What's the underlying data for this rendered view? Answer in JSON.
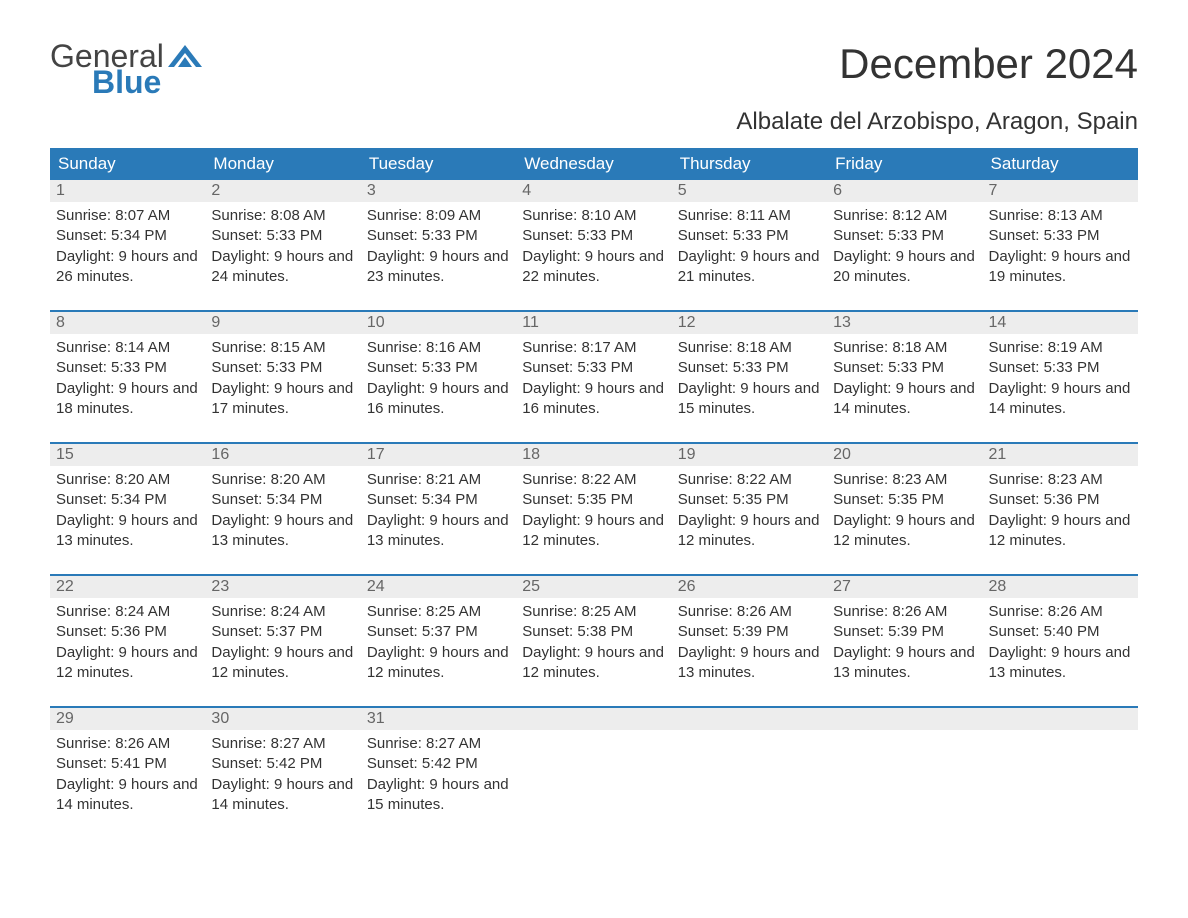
{
  "logo": {
    "general": "General",
    "blue": "Blue",
    "tri_color": "#2a7ab8"
  },
  "title": "December 2024",
  "location": "Albalate del Arzobispo, Aragon, Spain",
  "colors": {
    "header_bg": "#2a7ab8",
    "header_text": "#ffffff",
    "daynum_bg": "#ededed",
    "daynum_text": "#666666",
    "body_text": "#333333",
    "week_border": "#2a7ab8",
    "background": "#ffffff"
  },
  "weekdays": [
    "Sunday",
    "Monday",
    "Tuesday",
    "Wednesday",
    "Thursday",
    "Friday",
    "Saturday"
  ],
  "weeks": [
    [
      {
        "day": "1",
        "sunrise": "8:07 AM",
        "sunset": "5:34 PM",
        "daylight": "9 hours and 26 minutes."
      },
      {
        "day": "2",
        "sunrise": "8:08 AM",
        "sunset": "5:33 PM",
        "daylight": "9 hours and 24 minutes."
      },
      {
        "day": "3",
        "sunrise": "8:09 AM",
        "sunset": "5:33 PM",
        "daylight": "9 hours and 23 minutes."
      },
      {
        "day": "4",
        "sunrise": "8:10 AM",
        "sunset": "5:33 PM",
        "daylight": "9 hours and 22 minutes."
      },
      {
        "day": "5",
        "sunrise": "8:11 AM",
        "sunset": "5:33 PM",
        "daylight": "9 hours and 21 minutes."
      },
      {
        "day": "6",
        "sunrise": "8:12 AM",
        "sunset": "5:33 PM",
        "daylight": "9 hours and 20 minutes."
      },
      {
        "day": "7",
        "sunrise": "8:13 AM",
        "sunset": "5:33 PM",
        "daylight": "9 hours and 19 minutes."
      }
    ],
    [
      {
        "day": "8",
        "sunrise": "8:14 AM",
        "sunset": "5:33 PM",
        "daylight": "9 hours and 18 minutes."
      },
      {
        "day": "9",
        "sunrise": "8:15 AM",
        "sunset": "5:33 PM",
        "daylight": "9 hours and 17 minutes."
      },
      {
        "day": "10",
        "sunrise": "8:16 AM",
        "sunset": "5:33 PM",
        "daylight": "9 hours and 16 minutes."
      },
      {
        "day": "11",
        "sunrise": "8:17 AM",
        "sunset": "5:33 PM",
        "daylight": "9 hours and 16 minutes."
      },
      {
        "day": "12",
        "sunrise": "8:18 AM",
        "sunset": "5:33 PM",
        "daylight": "9 hours and 15 minutes."
      },
      {
        "day": "13",
        "sunrise": "8:18 AM",
        "sunset": "5:33 PM",
        "daylight": "9 hours and 14 minutes."
      },
      {
        "day": "14",
        "sunrise": "8:19 AM",
        "sunset": "5:33 PM",
        "daylight": "9 hours and 14 minutes."
      }
    ],
    [
      {
        "day": "15",
        "sunrise": "8:20 AM",
        "sunset": "5:34 PM",
        "daylight": "9 hours and 13 minutes."
      },
      {
        "day": "16",
        "sunrise": "8:20 AM",
        "sunset": "5:34 PM",
        "daylight": "9 hours and 13 minutes."
      },
      {
        "day": "17",
        "sunrise": "8:21 AM",
        "sunset": "5:34 PM",
        "daylight": "9 hours and 13 minutes."
      },
      {
        "day": "18",
        "sunrise": "8:22 AM",
        "sunset": "5:35 PM",
        "daylight": "9 hours and 12 minutes."
      },
      {
        "day": "19",
        "sunrise": "8:22 AM",
        "sunset": "5:35 PM",
        "daylight": "9 hours and 12 minutes."
      },
      {
        "day": "20",
        "sunrise": "8:23 AM",
        "sunset": "5:35 PM",
        "daylight": "9 hours and 12 minutes."
      },
      {
        "day": "21",
        "sunrise": "8:23 AM",
        "sunset": "5:36 PM",
        "daylight": "9 hours and 12 minutes."
      }
    ],
    [
      {
        "day": "22",
        "sunrise": "8:24 AM",
        "sunset": "5:36 PM",
        "daylight": "9 hours and 12 minutes."
      },
      {
        "day": "23",
        "sunrise": "8:24 AM",
        "sunset": "5:37 PM",
        "daylight": "9 hours and 12 minutes."
      },
      {
        "day": "24",
        "sunrise": "8:25 AM",
        "sunset": "5:37 PM",
        "daylight": "9 hours and 12 minutes."
      },
      {
        "day": "25",
        "sunrise": "8:25 AM",
        "sunset": "5:38 PM",
        "daylight": "9 hours and 12 minutes."
      },
      {
        "day": "26",
        "sunrise": "8:26 AM",
        "sunset": "5:39 PM",
        "daylight": "9 hours and 13 minutes."
      },
      {
        "day": "27",
        "sunrise": "8:26 AM",
        "sunset": "5:39 PM",
        "daylight": "9 hours and 13 minutes."
      },
      {
        "day": "28",
        "sunrise": "8:26 AM",
        "sunset": "5:40 PM",
        "daylight": "9 hours and 13 minutes."
      }
    ],
    [
      {
        "day": "29",
        "sunrise": "8:26 AM",
        "sunset": "5:41 PM",
        "daylight": "9 hours and 14 minutes."
      },
      {
        "day": "30",
        "sunrise": "8:27 AM",
        "sunset": "5:42 PM",
        "daylight": "9 hours and 14 minutes."
      },
      {
        "day": "31",
        "sunrise": "8:27 AM",
        "sunset": "5:42 PM",
        "daylight": "9 hours and 15 minutes."
      },
      {
        "empty": true
      },
      {
        "empty": true
      },
      {
        "empty": true
      },
      {
        "empty": true
      }
    ]
  ],
  "labels": {
    "sunrise": "Sunrise: ",
    "sunset": "Sunset: ",
    "daylight": "Daylight: "
  }
}
